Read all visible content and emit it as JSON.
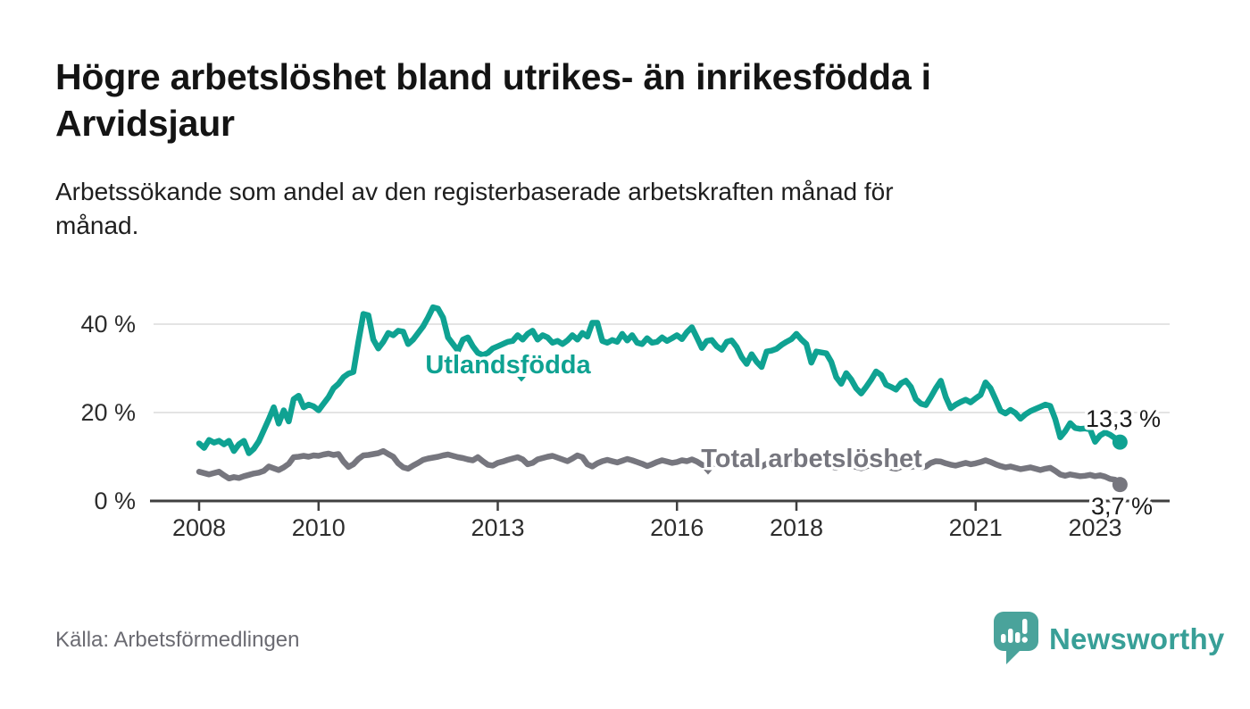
{
  "title": "Högre arbetslöshet bland utrikes- än inrikesfödda i\nArvidsjaur",
  "subtitle": "Arbetssökande som andel av den registerbaserade arbetskraften månad för\nmånad.",
  "source": "Källa: Arbetsförmedlingen",
  "branding": {
    "name": "Newsworthy",
    "logo_icon": "bar-chart-speech-bubble-icon",
    "color": "#389f97"
  },
  "chart_data": {
    "type": "line",
    "title": "Högre arbetslöshet bland utrikes- än inrikesfödda i Arvidsjaur",
    "xlabel": "",
    "ylabel": "Arbetssökande som andel av den registerbaserade arbetskraften",
    "x_unit": "month",
    "x_range": [
      "2008-01",
      "2023-06"
    ],
    "ylim": [
      0,
      46
    ],
    "grid": "horizontal",
    "legend_position": "inline-labels",
    "x_ticks": [
      2008,
      2010,
      2013,
      2016,
      2018,
      2021,
      2023
    ],
    "y_ticks": [
      {
        "value": 0,
        "label": "0 %"
      },
      {
        "value": 20,
        "label": "20 %"
      },
      {
        "value": 40,
        "label": "40 %"
      }
    ],
    "colors": {
      "grid": "#dcdcdc",
      "axis": "#3f3f3f"
    },
    "series": [
      {
        "name": "Utlandsfödda",
        "color": "#0fa292",
        "end_label": "13,3 %",
        "end_value": 13.3,
        "values": [
          13.0,
          12.0,
          13.8,
          13.2,
          13.6,
          12.8,
          13.6,
          11.3,
          12.8,
          13.6,
          10.8,
          11.8,
          13.5,
          16.0,
          18.5,
          21.2,
          17.5,
          20.5,
          18.0,
          23.0,
          23.8,
          21.2,
          21.8,
          21.4,
          20.5,
          22.0,
          23.5,
          25.5,
          26.5,
          28.0,
          28.8,
          29.2,
          36.0,
          42.3,
          42.0,
          36.5,
          34.5,
          36.0,
          38.0,
          37.5,
          38.5,
          38.3,
          35.5,
          36.5,
          38.0,
          39.5,
          41.5,
          43.8,
          43.5,
          41.5,
          37.0,
          35.5,
          34.0,
          36.5,
          37.0,
          35.0,
          33.5,
          33.0,
          33.5,
          34.5,
          35.0,
          35.5,
          36.0,
          36.2,
          37.5,
          36.5,
          37.8,
          38.5,
          36.5,
          37.5,
          37.0,
          35.8,
          36.2,
          35.5,
          36.3,
          37.5,
          36.5,
          38.0,
          37.2,
          40.3,
          40.3,
          36.2,
          35.8,
          36.4,
          36.0,
          37.8,
          36.3,
          37.5,
          35.8,
          35.5,
          36.8,
          35.8,
          36.0,
          37.0,
          36.2,
          36.8,
          37.5,
          36.6,
          38.2,
          39.3,
          37.0,
          34.6,
          36.2,
          36.4,
          35.0,
          34.2,
          36.0,
          36.3,
          34.8,
          32.5,
          31.0,
          33.2,
          31.5,
          30.3,
          33.8,
          34.0,
          34.4,
          35.3,
          36.0,
          36.6,
          37.8,
          36.5,
          35.5,
          31.3,
          33.8,
          33.6,
          33.4,
          31.5,
          28.0,
          26.5,
          28.9,
          27.5,
          25.5,
          24.3,
          25.8,
          27.4,
          29.3,
          28.5,
          26.3,
          25.8,
          25.2,
          26.6,
          27.2,
          25.8,
          23.0,
          22.0,
          21.7,
          23.5,
          25.5,
          27.2,
          23.5,
          21.0,
          21.8,
          22.4,
          22.9,
          22.3,
          23.2,
          24.0,
          26.8,
          25.5,
          23.0,
          20.4,
          19.8,
          20.6,
          19.9,
          18.6,
          19.6,
          20.3,
          20.8,
          21.3,
          21.8,
          21.5,
          18.5,
          14.4,
          15.8,
          17.6,
          16.5,
          16.3,
          16.4,
          16.2,
          13.4,
          14.8,
          15.5,
          15.0,
          14.2,
          13.3
        ]
      },
      {
        "name": "Total arbetslöshet",
        "color": "#76767e",
        "end_label": "3,7 %",
        "end_value": 3.7,
        "values": [
          6.6,
          6.3,
          6.0,
          6.3,
          6.6,
          5.8,
          5.1,
          5.4,
          5.2,
          5.6,
          5.9,
          6.2,
          6.4,
          6.8,
          7.8,
          7.4,
          7.0,
          7.6,
          8.4,
          9.9,
          10.0,
          10.2,
          10.0,
          10.3,
          10.2,
          10.5,
          10.7,
          10.4,
          10.6,
          8.9,
          7.7,
          8.3,
          9.5,
          10.3,
          10.4,
          10.6,
          10.8,
          11.3,
          10.6,
          10.0,
          8.5,
          7.6,
          7.3,
          8.0,
          8.6,
          9.3,
          9.6,
          9.8,
          10.0,
          10.3,
          10.5,
          10.2,
          9.9,
          9.7,
          9.4,
          9.2,
          9.9,
          9.0,
          8.2,
          8.0,
          8.6,
          8.9,
          9.3,
          9.6,
          9.9,
          9.4,
          8.3,
          8.6,
          9.4,
          9.7,
          10.0,
          10.2,
          9.8,
          9.4,
          9.0,
          9.6,
          10.3,
          9.9,
          8.3,
          7.8,
          8.5,
          9.0,
          9.3,
          9.0,
          8.7,
          9.1,
          9.5,
          9.2,
          8.8,
          8.4,
          7.9,
          8.3,
          8.8,
          9.2,
          8.9,
          8.6,
          8.8,
          9.2,
          9.0,
          9.4,
          8.9,
          8.2,
          7.8,
          8.2,
          8.6,
          8.9,
          8.7,
          8.9,
          8.7,
          8.4,
          8.1,
          8.5,
          8.2,
          7.8,
          8.4,
          8.8,
          9.1,
          8.9,
          9.2,
          9.4,
          9.6,
          9.2,
          8.8,
          8.3,
          8.6,
          8.4,
          8.1,
          7.8,
          7.5,
          7.9,
          8.3,
          8.0,
          7.7,
          7.4,
          7.8,
          8.1,
          8.5,
          8.2,
          7.8,
          7.5,
          7.3,
          7.7,
          8.0,
          7.7,
          7.9,
          7.6,
          7.8,
          8.6,
          9.0,
          8.9,
          8.5,
          8.2,
          8.0,
          8.3,
          8.6,
          8.3,
          8.5,
          8.8,
          9.2,
          8.8,
          8.3,
          7.9,
          7.6,
          7.8,
          7.5,
          7.2,
          7.4,
          7.6,
          7.3,
          7.0,
          7.3,
          7.5,
          6.8,
          6.0,
          5.7,
          6.0,
          5.8,
          5.6,
          5.7,
          5.9,
          5.6,
          5.8,
          5.5,
          5.0,
          4.8,
          3.7
        ]
      }
    ]
  }
}
